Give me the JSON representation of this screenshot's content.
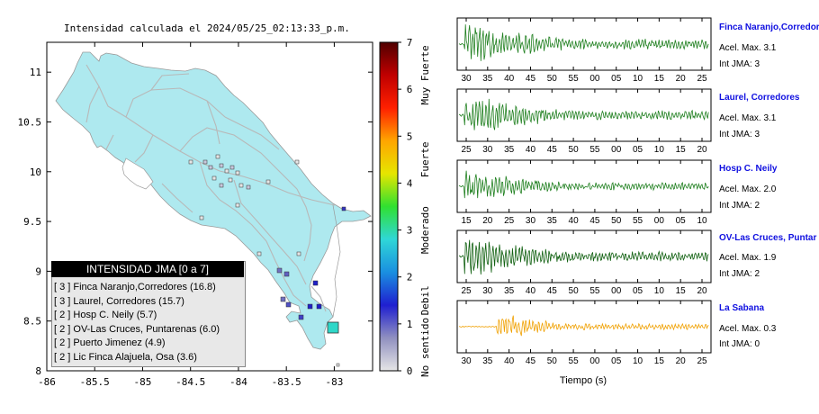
{
  "map": {
    "title": "Intensidad calculada el 2024/05/25_02:13:33_p.m.",
    "x_ticks": [
      "-86",
      "-85.5",
      "-85",
      "-84.5",
      "-84",
      "-83.5",
      "-83"
    ],
    "y_ticks": [
      "11",
      "10.5",
      "10",
      "9.5",
      "9",
      "8.5",
      "8"
    ]
  },
  "colorbar": {
    "ticks": [
      "0",
      "1",
      "2",
      "3",
      "4",
      "5",
      "6",
      "7"
    ],
    "categories": [
      "No sentido",
      "Debil",
      "Moderado",
      "Fuerte",
      "Muy Fuerte"
    ],
    "colors": [
      "#e6e6e6",
      "#9090c0",
      "#1f1fd0",
      "#1a8fe0",
      "#2fd7d7",
      "#30e030",
      "#e6e600",
      "#ffa500",
      "#ff2000",
      "#c00000",
      "#500000"
    ]
  },
  "legend": {
    "title": "INTENSIDAD JMA [0 a 7]",
    "items": [
      "[ 3 ]  Finca Naranjo,Corredores (16.8)",
      "[ 3 ]  Laurel, Corredores (15.7)",
      "[ 2 ]  Hosp C. Neily (5.7)",
      "[ 2 ]  OV-Las Cruces, Puntarenas (6.0)",
      "[ 2 ]  Puerto Jimenez (4.9)",
      "[ 2 ]  Lic Finca Alajuela, Osa (3.6)"
    ]
  },
  "waveforms": {
    "xlabel": "Tiempo (s)",
    "panels": [
      {
        "name": "Finca Naranjo,Corredor",
        "accel": "Acel. Max. 3.1",
        "jma": "Int JMA: 3",
        "ticks": [
          "30",
          "35",
          "40",
          "45",
          "50",
          "55",
          "00",
          "05",
          "10",
          "15",
          "20",
          "25"
        ],
        "color": "#208020"
      },
      {
        "name": "Laurel, Corredores",
        "accel": "Acel. Max. 3.1",
        "jma": "Int JMA: 3",
        "ticks": [
          "25",
          "30",
          "35",
          "40",
          "45",
          "50",
          "55",
          "00",
          "05",
          "10",
          "15",
          "20"
        ],
        "color": "#208020"
      },
      {
        "name": "Hosp C. Neily",
        "accel": "Acel. Max. 2.0",
        "jma": "Int JMA: 2",
        "ticks": [
          "15",
          "20",
          "25",
          "30",
          "35",
          "40",
          "45",
          "50",
          "55",
          "00",
          "05",
          "10"
        ],
        "color": "#208020"
      },
      {
        "name": "OV-Las Cruces, Puntar",
        "accel": "Acel. Max. 1.9",
        "jma": "Int JMA: 2",
        "ticks": [
          "25",
          "30",
          "35",
          "40",
          "45",
          "50",
          "55",
          "00",
          "05",
          "10",
          "15",
          "20"
        ],
        "color": "#106010"
      },
      {
        "name": "La Sabana",
        "accel": "Acel. Max. 0.3",
        "jma": "Int JMA: 0",
        "ticks": [
          "30",
          "35",
          "40",
          "45",
          "50",
          "55",
          "00",
          "05",
          "10",
          "15",
          "20",
          "25"
        ],
        "color": "#f0a000"
      }
    ]
  },
  "chart_data": [
    {
      "type": "scatter",
      "title": "Intensidad calculada el 2024/05/25_02:13:33_p.m.",
      "xlim": [
        -86,
        -82.6
      ],
      "ylim": [
        8,
        11.3
      ],
      "x_ticks": [
        -86,
        -85.5,
        -85,
        -84.5,
        -84,
        -83.5,
        -83
      ],
      "y_ticks": [
        8,
        8.5,
        9,
        9.5,
        10,
        10.5,
        11
      ],
      "colorbar": {
        "range": [
          0,
          7
        ],
        "labels": [
          "No sentido",
          "Debil",
          "Moderado",
          "Fuerte",
          "Muy Fuerte"
        ]
      },
      "legend_placement": "bottom-left",
      "stations": [
        {
          "name": "Finca Naranjo,Corredores",
          "intensity": 3,
          "value": 16.8
        },
        {
          "name": "Laurel, Corredores",
          "intensity": 3,
          "value": 15.7
        },
        {
          "name": "Hosp C. Neily",
          "intensity": 2,
          "value": 5.7
        },
        {
          "name": "OV-Las Cruces, Puntarenas",
          "intensity": 2,
          "value": 6.0
        },
        {
          "name": "Puerto Jimenez",
          "intensity": 2,
          "value": 4.9
        },
        {
          "name": "Lic Finca Alajuela, Osa",
          "intensity": 2,
          "value": 3.6
        }
      ]
    },
    {
      "type": "line",
      "xlabel": "Tiempo (s)",
      "series": [
        {
          "name": "Finca Naranjo,Corredor",
          "peak": 3.1,
          "jma": 3
        },
        {
          "name": "Laurel, Corredores",
          "peak": 3.1,
          "jma": 3
        },
        {
          "name": "Hosp C. Neily",
          "peak": 2.0,
          "jma": 2
        },
        {
          "name": "OV-Las Cruces, Puntar",
          "peak": 1.9,
          "jma": 2
        },
        {
          "name": "La Sabana",
          "peak": 0.3,
          "jma": 0
        }
      ]
    }
  ]
}
